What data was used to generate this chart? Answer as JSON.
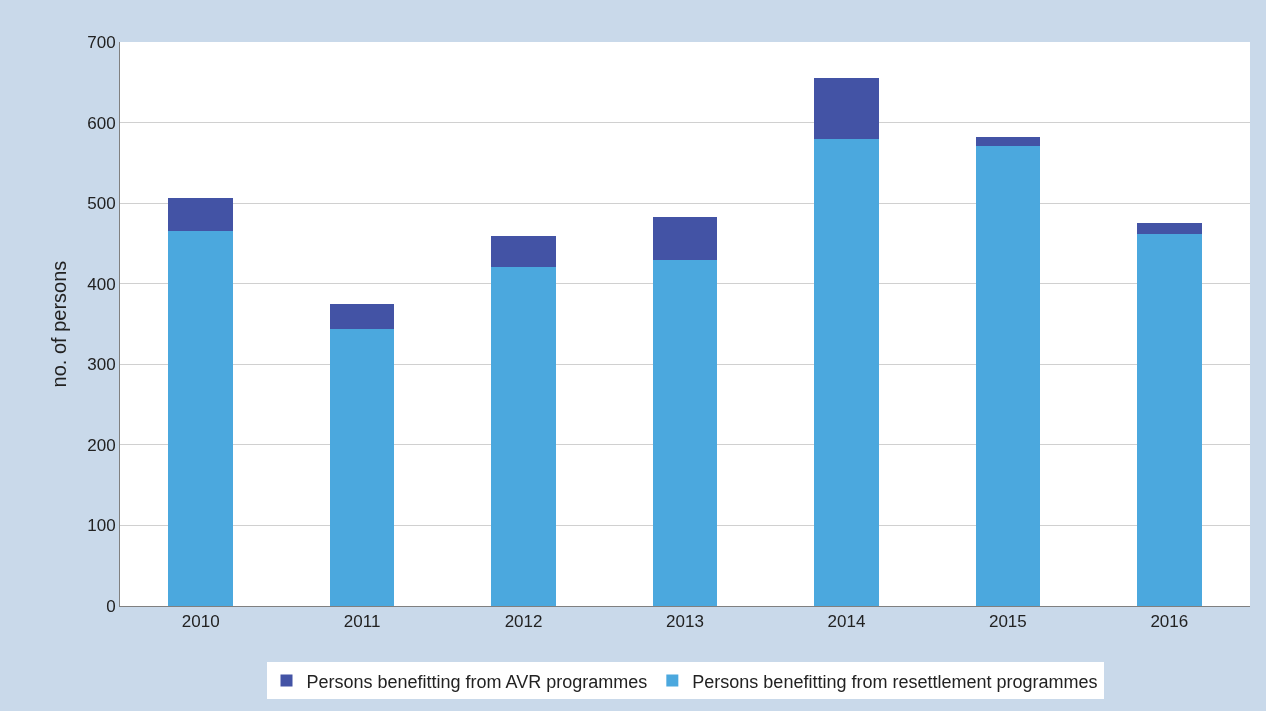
{
  "chart_data": {
    "type": "bar",
    "stacked": true,
    "ylabel": "no. of persons",
    "categories": [
      "2010",
      "2011",
      "2012",
      "2013",
      "2014",
      "2015",
      "2016"
    ],
    "series": [
      {
        "name": "Persons benefitting from resettlement programmes",
        "color": "#4ba8de",
        "values": [
          465,
          344,
          421,
          429,
          580,
          571,
          462
        ]
      },
      {
        "name": "Persons benefitting from AVR programmes",
        "color": "#4353a5",
        "values": [
          42,
          31,
          38,
          54,
          75,
          11,
          13
        ]
      }
    ],
    "ylim": [
      0,
      700
    ],
    "yticks": [
      0,
      100,
      200,
      300,
      400,
      500,
      600,
      700
    ],
    "grid": "y",
    "legend": "bottom"
  }
}
